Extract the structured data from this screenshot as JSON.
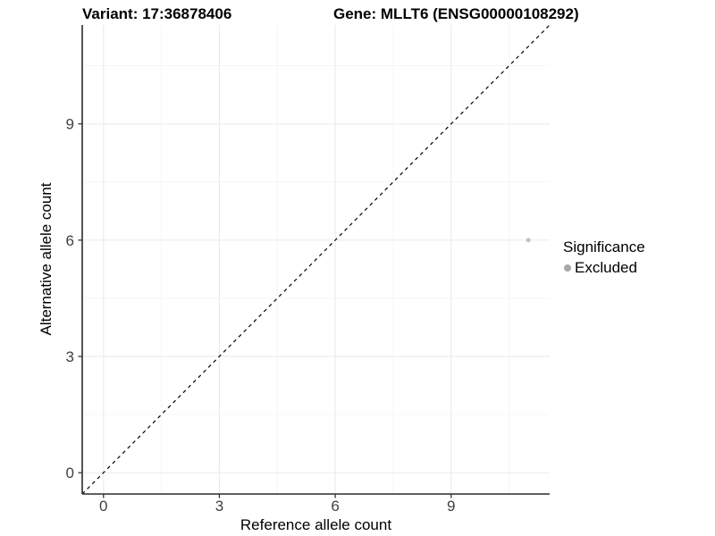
{
  "chart_data": {
    "type": "scatter",
    "title_left": "Variant: 17:36878406",
    "title_right": "Gene: MLLT6 (ENSG00000108292)",
    "xlabel": "Reference allele count",
    "ylabel": "Alternative allele count",
    "xticks": [
      0,
      3,
      6,
      9
    ],
    "yticks": [
      0,
      3,
      6,
      9
    ],
    "minor_breaks": [
      1.5,
      4.5,
      7.5,
      10.5
    ],
    "xlim": [
      -0.55,
      11.55
    ],
    "ylim": [
      -0.55,
      11.55
    ],
    "grid": "major+minor, light grey on white",
    "identity_line": {
      "style": "dashed",
      "color": "#000000",
      "from": [
        -0.55,
        -0.55
      ],
      "to": [
        11.55,
        11.55
      ]
    },
    "series": [
      {
        "name": "Excluded",
        "color": "#c3c3c3",
        "points": [
          {
            "x": 11,
            "y": 6
          }
        ]
      }
    ],
    "legend": {
      "title": "Significance",
      "position": "right",
      "entries": [
        {
          "label": "Excluded",
          "color": "#a8a8a8"
        }
      ]
    }
  },
  "style_colors": {
    "axis_line": "#2b2b2b",
    "tick_mark": "#333333",
    "tick_label": "#404040",
    "grid_major": "#ebebeb",
    "grid_minor": "#f5f5f5",
    "panel_background": "#ffffff"
  }
}
